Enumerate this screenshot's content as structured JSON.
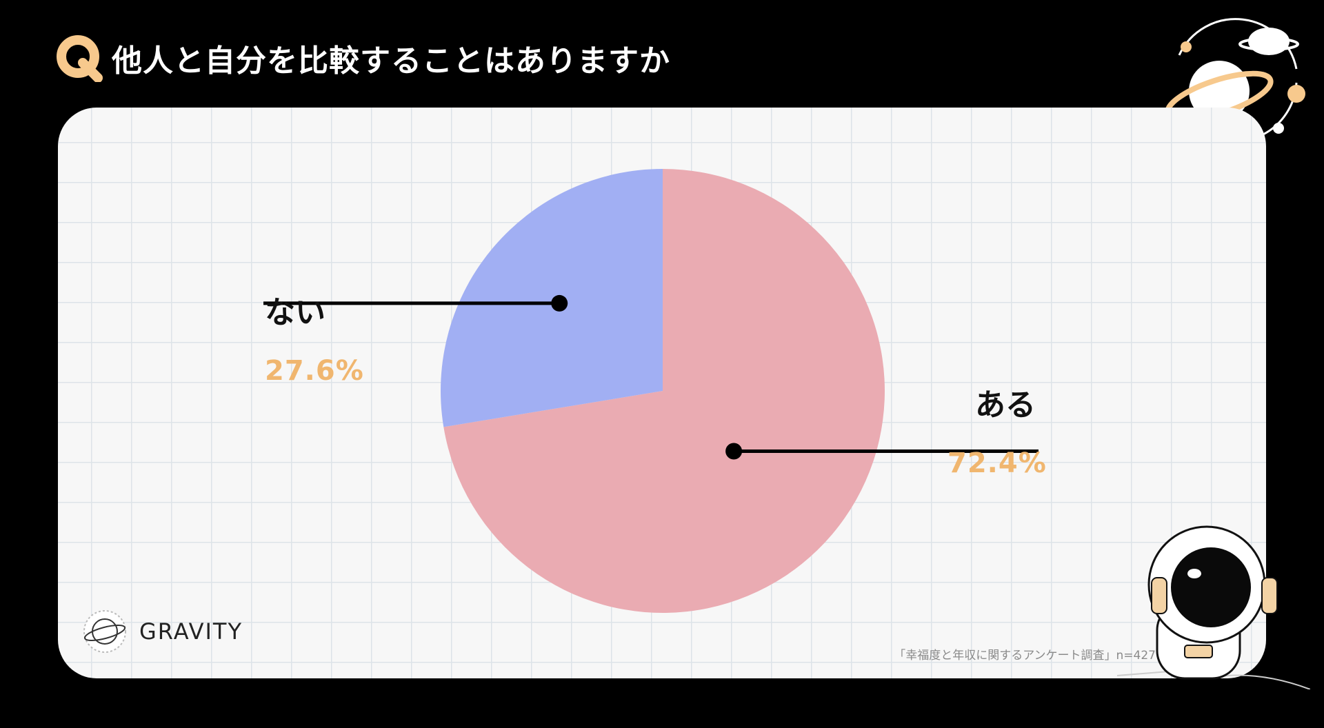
{
  "header": {
    "badge_letter": "Q",
    "question": "他人と自分を比較することはありますか"
  },
  "chart_data": {
    "type": "pie",
    "slices": [
      {
        "label": "ある",
        "value": 72.4,
        "value_label": "72.4%",
        "color": "#eaabb2"
      },
      {
        "label": "ない",
        "value": 27.6,
        "value_label": "27.6%",
        "color": "#a1aff3"
      }
    ],
    "label_color": "#f0b66f"
  },
  "footer": {
    "logo_text": "GRAVITY",
    "source": "「幸福度と年収に関するアンケート調査」n=427"
  },
  "colors": {
    "accent": "#f7c98d",
    "background": "#000000",
    "card": "#f7f7f7"
  },
  "icons": [
    "q-badge-icon",
    "planet-icon",
    "astronaut-illustration",
    "gravity-logo-icon"
  ]
}
